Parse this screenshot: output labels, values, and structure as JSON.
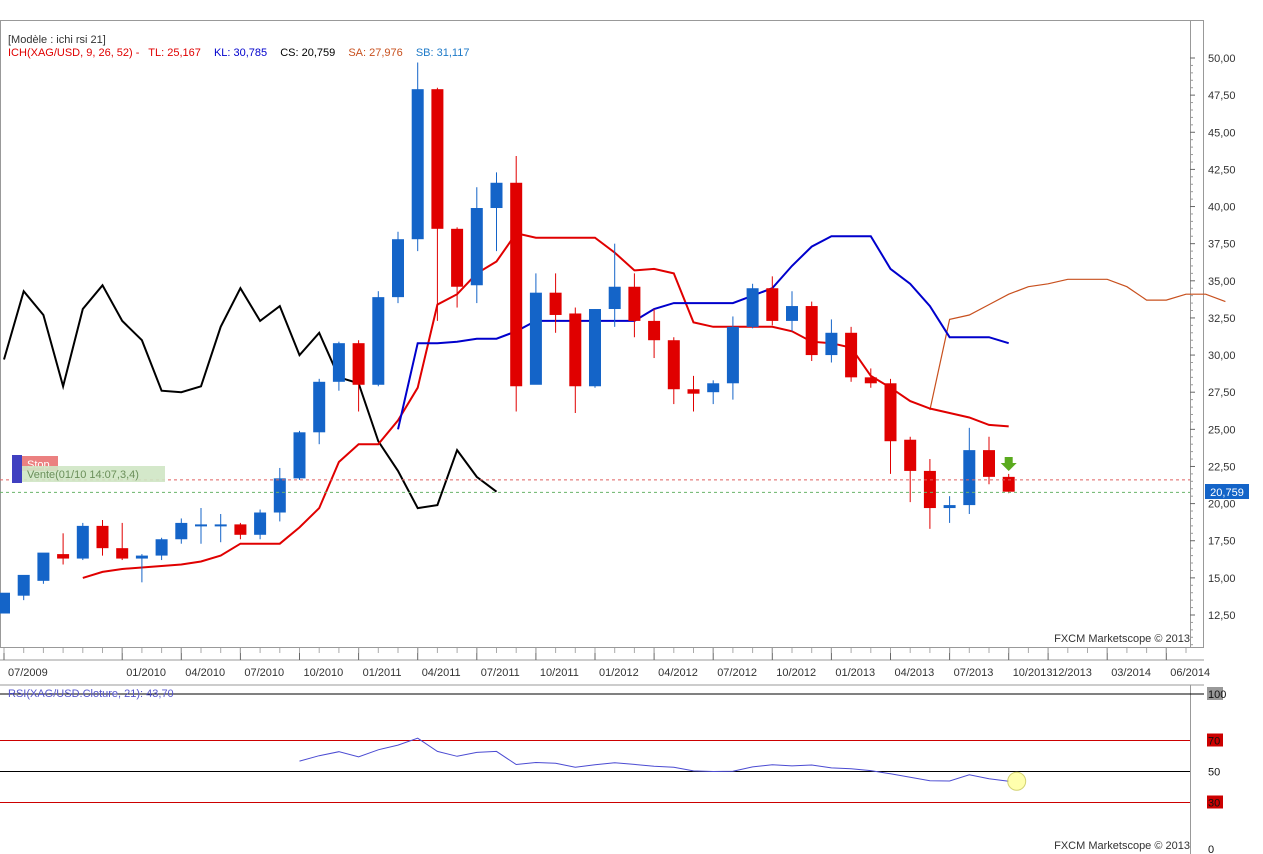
{
  "header": {
    "model_label": "[Modèle : ichi rsi 21]",
    "ich_label": "ICH(XAG/USD, 9, 26, 52) -",
    "tl": "TL: 25,167",
    "kl": "KL: 30,785",
    "cs": "CS: 20,759",
    "sa": "SA: 27,976",
    "sb": "SB: 31,117"
  },
  "order": {
    "stop_label": "Stop",
    "order_label": "Vente(01/10 14:07,3,4)"
  },
  "price_tag": "20,759",
  "watermark": "FXCM Marketscope © 2013",
  "rsi_label": "RSI(XAG/USD.Cloture, 21): 43,70",
  "colors": {
    "bull": "#1464c8",
    "bear": "#e00000",
    "tenkan": "#e00000",
    "kijun": "#0000cc",
    "chikou": "#000000",
    "senkou_a": "#c8501e",
    "rsi": "#4b4bd2",
    "rsi_band": "#cc0000"
  },
  "chart_data": [
    {
      "type": "candlestick",
      "instrument": "XAG/USD",
      "y_ticks": [
        "50,00",
        "47,50",
        "45,00",
        "42,50",
        "40,00",
        "37,50",
        "35,00",
        "32,50",
        "30,00",
        "27,50",
        "25,00",
        "22,50",
        "20,00",
        "17,50",
        "15,00",
        "12,50"
      ],
      "ylim": [
        11,
        51
      ],
      "x_ticks": [
        "07/2009",
        "01/2010",
        "04/2010",
        "07/2010",
        "10/2010",
        "01/2011",
        "04/2011",
        "07/2011",
        "10/2011",
        "01/2012",
        "04/2012",
        "07/2012",
        "10/2012",
        "01/2013",
        "04/2013",
        "07/2013",
        "10/2013",
        "12/2013",
        "03/2014",
        "06/2014"
      ],
      "x_tick_period": [
        0,
        6,
        9,
        12,
        15,
        18,
        21,
        24,
        27,
        30,
        33,
        36,
        39,
        42,
        45,
        48,
        51,
        53,
        56,
        59
      ],
      "candles": [
        [
          12.6,
          13.2,
          13.8,
          14.0
        ],
        [
          13.8,
          13.5,
          14.7,
          15.2
        ],
        [
          14.8,
          14.6,
          16.6,
          16.7
        ],
        [
          16.6,
          15.9,
          18.0,
          16.3
        ],
        [
          16.3,
          16.2,
          18.7,
          18.5
        ],
        [
          18.5,
          16.5,
          18.9,
          17.0
        ],
        [
          17.0,
          16.2,
          18.7,
          16.3
        ],
        [
          16.3,
          14.7,
          16.6,
          16.5
        ],
        [
          16.5,
          16.2,
          17.7,
          17.6
        ],
        [
          17.6,
          17.3,
          19.0,
          18.7
        ],
        [
          18.6,
          17.3,
          19.7,
          18.6
        ],
        [
          18.6,
          17.4,
          19.3,
          18.6
        ],
        [
          18.6,
          17.6,
          18.7,
          17.9
        ],
        [
          17.9,
          17.6,
          19.6,
          19.4
        ],
        [
          19.4,
          18.8,
          22.4,
          21.7
        ],
        [
          21.7,
          21.6,
          24.9,
          24.8
        ],
        [
          24.8,
          24.0,
          28.4,
          28.2
        ],
        [
          28.2,
          27.6,
          30.9,
          30.8
        ],
        [
          30.8,
          26.2,
          31.0,
          28.0
        ],
        [
          28.0,
          27.9,
          34.3,
          33.9
        ],
        [
          33.9,
          33.5,
          38.3,
          37.8
        ],
        [
          37.8,
          37.0,
          49.7,
          47.9
        ],
        [
          47.9,
          32.3,
          48.0,
          38.5
        ],
        [
          38.5,
          33.2,
          38.6,
          34.6
        ],
        [
          34.7,
          33.5,
          41.3,
          39.9
        ],
        [
          39.9,
          37.0,
          42.3,
          41.6
        ],
        [
          41.6,
          26.2,
          43.4,
          27.9
        ],
        [
          28.0,
          28.5,
          35.5,
          34.2
        ],
        [
          34.2,
          31.5,
          35.5,
          32.7
        ],
        [
          32.8,
          26.1,
          33.2,
          27.9
        ],
        [
          27.9,
          27.8,
          33.1,
          33.1
        ],
        [
          33.1,
          31.9,
          37.5,
          34.6
        ],
        [
          34.6,
          31.2,
          35.5,
          32.3
        ],
        [
          32.3,
          29.8,
          33.1,
          31.0
        ],
        [
          31.0,
          26.7,
          31.2,
          27.7
        ],
        [
          27.7,
          26.2,
          28.6,
          27.4
        ],
        [
          27.5,
          26.7,
          28.3,
          28.1
        ],
        [
          28.1,
          27.0,
          32.6,
          31.9
        ],
        [
          31.9,
          31.8,
          34.8,
          34.5
        ],
        [
          34.5,
          32.0,
          35.3,
          32.3
        ],
        [
          32.3,
          31.6,
          34.3,
          33.3
        ],
        [
          33.3,
          29.6,
          33.6,
          30.0
        ],
        [
          30.0,
          29.5,
          32.4,
          31.5
        ],
        [
          31.5,
          28.2,
          31.9,
          28.5
        ],
        [
          28.5,
          27.8,
          29.1,
          28.1
        ],
        [
          28.1,
          22.0,
          28.4,
          24.2
        ],
        [
          24.3,
          20.1,
          24.5,
          22.2
        ],
        [
          22.2,
          18.3,
          23.0,
          19.7
        ],
        [
          19.7,
          18.7,
          20.5,
          19.9
        ],
        [
          19.9,
          19.3,
          25.1,
          23.6
        ],
        [
          23.6,
          21.3,
          24.5,
          21.8
        ],
        [
          21.8,
          20.7,
          22.0,
          20.8
        ]
      ],
      "tenkan_sen": [
        null,
        null,
        null,
        null,
        15.0,
        15.4,
        15.6,
        15.7,
        15.8,
        15.9,
        16.1,
        16.5,
        17.3,
        17.3,
        17.3,
        18.4,
        19.7,
        22.8,
        24.0,
        24.0,
        25.6,
        27.8,
        33.4,
        34.1,
        35.5,
        36.3,
        38.2,
        37.9,
        37.9,
        37.9,
        37.9,
        36.9,
        35.7,
        35.8,
        35.5,
        32.2,
        31.9,
        31.9,
        31.9,
        31.9,
        31.6,
        30.9,
        30.8,
        30.5,
        28.6,
        27.8,
        26.9,
        26.4,
        26.1,
        25.8,
        25.3,
        25.2
      ],
      "kijun_sen": [
        null,
        null,
        null,
        null,
        null,
        null,
        null,
        null,
        null,
        null,
        null,
        null,
        null,
        null,
        null,
        null,
        null,
        null,
        null,
        null,
        25.0,
        30.8,
        30.8,
        30.9,
        31.1,
        31.1,
        31.6,
        32.3,
        32.3,
        32.3,
        32.3,
        32.3,
        32.3,
        33.1,
        33.5,
        33.5,
        33.5,
        33.5,
        34.0,
        34.5,
        36.0,
        37.3,
        38.0,
        38.0,
        38.0,
        35.8,
        34.8,
        33.3,
        31.2,
        31.2,
        31.2,
        30.8
      ],
      "chikou_span": [
        29.7,
        34.3,
        32.7,
        27.9,
        33.1,
        34.7,
        32.3,
        31.0,
        27.6,
        27.5,
        27.9,
        31.9,
        34.5,
        32.3,
        33.3,
        30.0,
        31.5,
        28.5,
        28.1,
        24.2,
        22.2,
        19.7,
        19.9,
        23.6,
        21.8,
        20.8
      ],
      "senkou_span_a_from_period": 47,
      "senkou_span_a": [
        26.3,
        32.4,
        32.7,
        33.4,
        34.1,
        34.6,
        34.8,
        35.1,
        35.1,
        35.1,
        34.6,
        33.7,
        33.7,
        34.1,
        34.1,
        33.6
      ],
      "current_price": 20.759,
      "stop_level": 21.6
    },
    {
      "type": "line",
      "name": "RSI(XAG/USD.Cloture, 21)",
      "y_ticks": [
        "100",
        "70",
        "50",
        "30",
        "0"
      ],
      "ylim": [
        0,
        100
      ],
      "bands": [
        70,
        50,
        30
      ],
      "from_period": 15,
      "values": [
        56.7,
        60.2,
        62.8,
        59.4,
        64.0,
        67.0,
        71.5,
        63.0,
        59.8,
        62.3,
        63.0,
        54.5,
        55.8,
        55.3,
        52.8,
        54.4,
        55.7,
        54.6,
        53.4,
        52.8,
        50.4,
        50.0,
        50.1,
        53.0,
        54.4,
        53.6,
        54.2,
        52.3,
        51.8,
        50.6,
        48.5,
        46.3,
        44.0,
        43.9,
        47.9,
        45.3,
        43.7
      ]
    }
  ]
}
